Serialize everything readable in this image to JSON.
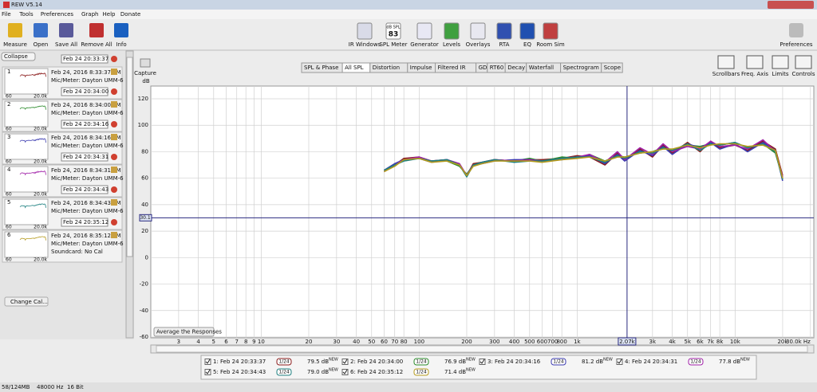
{
  "window": {
    "title": "REW V5.14"
  },
  "menu": [
    "File",
    "Tools",
    "Preferences",
    "Graph",
    "Help",
    "Donate"
  ],
  "toolbar": {
    "left": [
      "Measure",
      "Open",
      "Save All",
      "Remove All",
      "Info"
    ],
    "center": [
      "IR Windows",
      "SPL Meter",
      "Generator",
      "Levels",
      "Overlays",
      "RTA",
      "EQ",
      "Room Sim"
    ],
    "spl_icon": {
      "unit": "dB SPL",
      "reading": "83"
    },
    "right": [
      "Preferences"
    ]
  },
  "sidebar": {
    "collapse": "Collapse",
    "measurements": [
      {
        "number": "1",
        "name": "Feb 24 20:33:37",
        "date": "Feb 24, 2016 8:33:37 PM",
        "mic": "Mic/Meter: Dayton UMM-6"
      },
      {
        "number": "2",
        "name": "Feb 24 20:34:00",
        "date": "Feb 24, 2016 8:34:00 PM",
        "mic": "Mic/Meter: Dayton UMM-6"
      },
      {
        "number": "3",
        "name": "Feb 24 20:34:16",
        "date": "Feb 24, 2016 8:34:16 PM",
        "mic": "Mic/Meter: Dayton UMM-6"
      },
      {
        "number": "4",
        "name": "Feb 24 20:34:31",
        "date": "Feb 24, 2016 8:34:31 PM",
        "mic": "Mic/Meter: Dayton UMM-6"
      },
      {
        "number": "5",
        "name": "Feb 24 20:34:43",
        "date": "Feb 24, 2016 8:34:43 PM",
        "mic": "Mic/Meter: Dayton UMM-6"
      },
      {
        "number": "6",
        "name": "Feb 24 20:35:12",
        "date": "Feb 24, 2016 8:35:12 PM",
        "mic": "Mic/Meter: Dayton UMM-6"
      }
    ],
    "thumb_axis": [
      "60",
      "20.0k"
    ],
    "soundcard": "Soundcard: No Cal",
    "change_cal": "Change Cal..."
  },
  "capture": "Capture",
  "tabs": [
    "SPL & Phase",
    "All SPL",
    "Distortion",
    "Impulse",
    "Filtered IR",
    "GD",
    "RT60",
    "Decay",
    "Waterfall",
    "Spectrogram",
    "Scope"
  ],
  "active_tab": "All SPL",
  "graph_controls": [
    "Scrollbars",
    "Freq. Axis",
    "Limits",
    "Controls"
  ],
  "average_button": "Average the Responses",
  "chart_data": {
    "type": "line",
    "y_label": "dB",
    "log_x": true,
    "grid": true,
    "xlim": [
      2,
      31500
    ],
    "ylim": [
      -60,
      120
    ],
    "yticks": [
      120,
      100,
      80,
      60,
      40,
      20,
      0,
      -20,
      -40,
      -60
    ],
    "xticks": [
      3,
      4,
      5,
      6,
      7,
      8,
      9,
      10,
      20,
      30,
      40,
      50,
      60,
      70,
      80,
      100,
      200,
      300,
      400,
      500,
      600,
      700,
      800,
      {
        "value": 1000,
        "label": "1k"
      },
      {
        "value": 3000,
        "label": "3k"
      },
      {
        "value": 4000,
        "label": "4k"
      },
      {
        "value": 5000,
        "label": "5k"
      },
      {
        "value": 6000,
        "label": "6k"
      },
      {
        "value": 7000,
        "label": "7k"
      },
      {
        "value": 8000,
        "label": "8k"
      },
      {
        "value": 10000,
        "label": "10k"
      },
      {
        "value": 20000,
        "label": "20k"
      },
      {
        "value": 30000,
        "label": "30.0k Hz"
      }
    ],
    "cursor": {
      "x": {
        "value": 2070,
        "label": "2.07k"
      },
      "y": {
        "value": 30.1,
        "label": "30.1"
      }
    },
    "x": [
      60,
      70,
      80,
      100,
      120,
      150,
      180,
      200,
      220,
      250,
      300,
      400,
      500,
      600,
      800,
      1000,
      1200,
      1500,
      1800,
      2000,
      2500,
      3000,
      3500,
      4000,
      5000,
      6000,
      7000,
      8000,
      10000,
      12000,
      15000,
      18000,
      20000
    ],
    "series": [
      {
        "name": "1: Feb 24 20:33:37",
        "color": "#8b1c1c",
        "values": [
          66,
          70,
          75,
          76,
          73,
          74,
          70,
          62,
          71,
          72,
          74,
          73,
          74,
          74,
          75,
          77,
          76,
          70,
          79,
          74,
          82,
          76,
          85,
          79,
          87,
          80,
          88,
          83,
          85,
          81,
          88,
          82,
          62
        ]
      },
      {
        "name": "2: Feb 24 20:34:00",
        "color": "#2a8a2a",
        "values": [
          65,
          70,
          74,
          75,
          73,
          73,
          69,
          63,
          70,
          72,
          74,
          73,
          75,
          73,
          76,
          75,
          78,
          73,
          77,
          76,
          79,
          80,
          83,
          81,
          85,
          84,
          86,
          85,
          87,
          83,
          86,
          79,
          60
        ]
      },
      {
        "name": "3: Feb 24 20:34:16",
        "color": "#3b3bb0",
        "values": [
          66,
          71,
          74,
          75,
          72,
          74,
          70,
          62,
          70,
          71,
          73,
          74,
          74,
          73,
          74,
          76,
          77,
          71,
          78,
          73,
          81,
          77,
          84,
          78,
          86,
          83,
          87,
          82,
          86,
          80,
          87,
          81,
          58
        ]
      },
      {
        "name": "4: Feb 24 20:34:31",
        "color": "#a020a8",
        "values": [
          65,
          70,
          74,
          76,
          73,
          74,
          71,
          62,
          70,
          72,
          74,
          73,
          74,
          73,
          75,
          76,
          78,
          72,
          80,
          74,
          83,
          78,
          86,
          80,
          84,
          82,
          88,
          84,
          85,
          82,
          89,
          80,
          61
        ]
      },
      {
        "name": "5: Feb 24 20:34:43",
        "color": "#1e8080",
        "values": [
          66,
          70,
          73,
          75,
          73,
          74,
          70,
          61,
          70,
          72,
          74,
          72,
          73,
          73,
          75,
          76,
          76,
          72,
          77,
          75,
          80,
          79,
          83,
          81,
          86,
          81,
          86,
          85,
          87,
          83,
          86,
          80,
          59
        ]
      },
      {
        "name": "6: Feb 24 20:35:12",
        "color": "#b59a1c",
        "values": [
          65,
          69,
          74,
          75,
          72,
          73,
          70,
          62,
          69,
          71,
          73,
          73,
          73,
          72,
          74,
          75,
          76,
          73,
          76,
          76,
          79,
          80,
          82,
          82,
          85,
          83,
          85,
          86,
          86,
          84,
          85,
          81,
          60
        ]
      }
    ]
  },
  "legend": [
    {
      "smoothing": "1/24",
      "level": "79.5 dB",
      "badge": "NEW"
    },
    {
      "smoothing": "1/24",
      "level": "76.9 dB",
      "badge": "NEW"
    },
    {
      "smoothing": "1/24",
      "level": "81.2 dB",
      "badge": "NEW"
    },
    {
      "smoothing": "1/24",
      "level": "77.8 dB",
      "badge": "NEW"
    },
    {
      "smoothing": "1/24",
      "level": "79.0 dB",
      "badge": "NEW"
    },
    {
      "smoothing": "1/24",
      "level": "71.4 dB",
      "badge": "NEW"
    }
  ],
  "status": [
    "58/124MB",
    "48000 Hz",
    "16 Bit"
  ]
}
